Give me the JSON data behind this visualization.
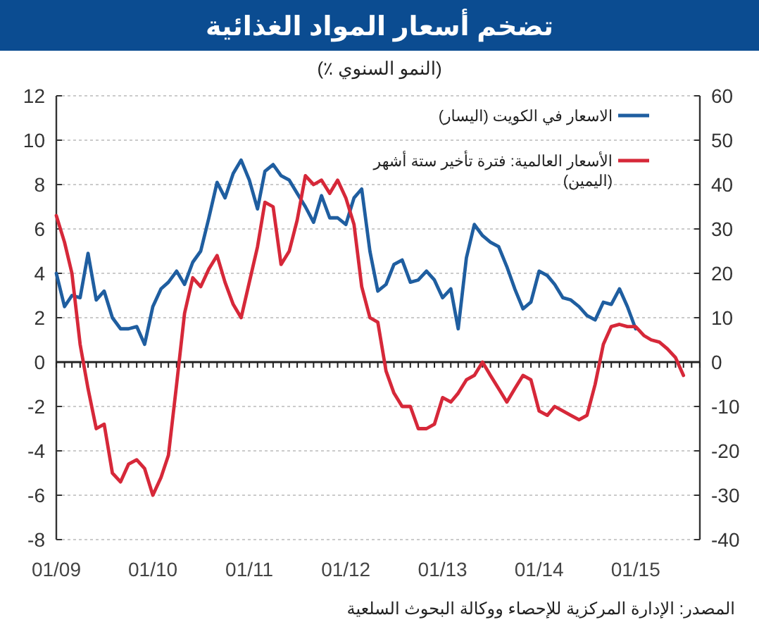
{
  "chart_data": {
    "type": "line",
    "title": "تضخم أسعار المواد الغذائية",
    "subtitle": "(النمو السنوي ٪)",
    "xlim": [
      "2009-01",
      "2015-09"
    ],
    "xticks": [
      {
        "value": "2009-01",
        "label": "01/09"
      },
      {
        "value": "2010-01",
        "label": "01/10"
      },
      {
        "value": "2011-01",
        "label": "01/11"
      },
      {
        "value": "2012-01",
        "label": "01/12"
      },
      {
        "value": "2013-01",
        "label": "01/13"
      },
      {
        "value": "2014-01",
        "label": "01/14"
      },
      {
        "value": "2015-01",
        "label": "01/15"
      }
    ],
    "ylim": [
      -8,
      12
    ],
    "yticks": [
      -8,
      -6,
      -4,
      -2,
      0,
      2,
      4,
      6,
      8,
      10,
      12
    ],
    "y2lim": [
      -40,
      60
    ],
    "y2ticks": [
      -40,
      -30,
      -20,
      -10,
      0,
      10,
      20,
      30,
      40,
      50,
      60
    ],
    "grid": "y",
    "legend": "top right",
    "line_style": "solid",
    "marker": "none",
    "series": [
      {
        "name": "الاسعار في الكويت (اليسار)",
        "color": "#1f5ea0",
        "x": [
          "2009-01",
          "2009-02",
          "2009-03",
          "2009-04",
          "2009-05",
          "2009-06",
          "2009-07",
          "2009-08",
          "2009-09",
          "2009-10",
          "2009-11",
          "2009-12",
          "2010-01",
          "2010-02",
          "2010-03",
          "2010-04",
          "2010-05",
          "2010-06",
          "2010-07",
          "2010-08",
          "2010-09",
          "2010-10",
          "2010-11",
          "2010-12",
          "2011-01",
          "2011-02",
          "2011-03",
          "2011-04",
          "2011-05",
          "2011-06",
          "2011-07",
          "2011-08",
          "2011-09",
          "2011-10",
          "2011-11",
          "2011-12",
          "2012-01",
          "2012-02",
          "2012-03",
          "2012-04",
          "2012-05",
          "2012-06",
          "2012-07",
          "2012-08",
          "2012-09",
          "2012-10",
          "2012-11",
          "2012-12",
          "2013-01",
          "2013-02",
          "2013-03",
          "2013-04",
          "2013-05",
          "2013-06",
          "2013-07",
          "2013-08",
          "2013-09",
          "2013-10",
          "2013-11",
          "2013-12",
          "2014-01",
          "2014-02",
          "2014-03",
          "2014-04",
          "2014-05",
          "2014-06",
          "2014-07",
          "2014-08",
          "2014-09",
          "2014-10",
          "2014-11",
          "2014-12",
          "2015-01"
        ],
        "values": [
          4.0,
          2.5,
          3.0,
          2.9,
          4.9,
          2.8,
          3.2,
          2.0,
          1.5,
          1.5,
          1.6,
          0.8,
          2.5,
          3.3,
          3.6,
          4.1,
          3.5,
          4.5,
          5.0,
          6.5,
          8.1,
          7.4,
          8.5,
          9.1,
          8.2,
          6.9,
          8.6,
          8.9,
          8.4,
          8.2,
          7.6,
          7.0,
          6.3,
          7.5,
          6.5,
          6.5,
          6.2,
          7.4,
          7.8,
          5.0,
          3.2,
          3.5,
          4.4,
          4.6,
          3.6,
          3.7,
          4.1,
          3.7,
          2.9,
          3.3,
          1.5,
          4.7,
          6.2,
          5.7,
          5.4,
          5.2,
          4.3,
          3.3,
          2.4,
          2.7,
          4.1,
          3.9,
          3.5,
          2.9,
          2.8,
          2.5,
          2.1,
          1.9,
          2.7,
          2.6,
          3.3,
          2.5,
          1.5
        ]
      },
      {
        "name": "الأسعار العالمية: فترة تأخير ستة أشهر (اليمين)",
        "color": "#d62839",
        "axis": "y2",
        "x": [
          "2009-01",
          "2009-02",
          "2009-03",
          "2009-04",
          "2009-05",
          "2009-06",
          "2009-07",
          "2009-08",
          "2009-09",
          "2009-10",
          "2009-11",
          "2009-12",
          "2010-01",
          "2010-02",
          "2010-03",
          "2010-04",
          "2010-05",
          "2010-06",
          "2010-07",
          "2010-08",
          "2010-09",
          "2010-10",
          "2010-11",
          "2010-12",
          "2011-01",
          "2011-02",
          "2011-03",
          "2011-04",
          "2011-05",
          "2011-06",
          "2011-07",
          "2011-08",
          "2011-09",
          "2011-10",
          "2011-11",
          "2011-12",
          "2012-01",
          "2012-02",
          "2012-03",
          "2012-04",
          "2012-05",
          "2012-06",
          "2012-07",
          "2012-08",
          "2012-09",
          "2012-10",
          "2012-11",
          "2012-12",
          "2013-01",
          "2013-02",
          "2013-03",
          "2013-04",
          "2013-05",
          "2013-06",
          "2013-07",
          "2013-08",
          "2013-09",
          "2013-10",
          "2013-11",
          "2013-12",
          "2014-01",
          "2014-02",
          "2014-03",
          "2014-04",
          "2014-05",
          "2014-06",
          "2014-07",
          "2014-08",
          "2014-09",
          "2014-10",
          "2014-11",
          "2014-12",
          "2015-01",
          "2015-02",
          "2015-03",
          "2015-04",
          "2015-05",
          "2015-06",
          "2015-07"
        ],
        "values": [
          33,
          27,
          20,
          4,
          -6,
          -15,
          -14,
          -25,
          -27,
          -23,
          -22,
          -24,
          -30,
          -26,
          -21,
          -5,
          11,
          19,
          17,
          21,
          24,
          18,
          13,
          10,
          18,
          26,
          36,
          35,
          22,
          25,
          32,
          42,
          40,
          41,
          38,
          41,
          37,
          31,
          17,
          10,
          9,
          -2,
          -7,
          -10,
          -10,
          -15,
          -15,
          -14,
          -8,
          -9,
          -7,
          -4,
          -3,
          0,
          -3,
          -6,
          -9,
          -6,
          -3,
          -4,
          -11,
          -12,
          -10,
          -11,
          -12,
          -13,
          -12,
          -5,
          4,
          8,
          8.5,
          8,
          8,
          6,
          5,
          4.5,
          3,
          1,
          -3
        ]
      }
    ],
    "annotations": [
      "المصدر: الإدارة المركزية للإحصاء ووكالة البحوث السلعية"
    ]
  }
}
